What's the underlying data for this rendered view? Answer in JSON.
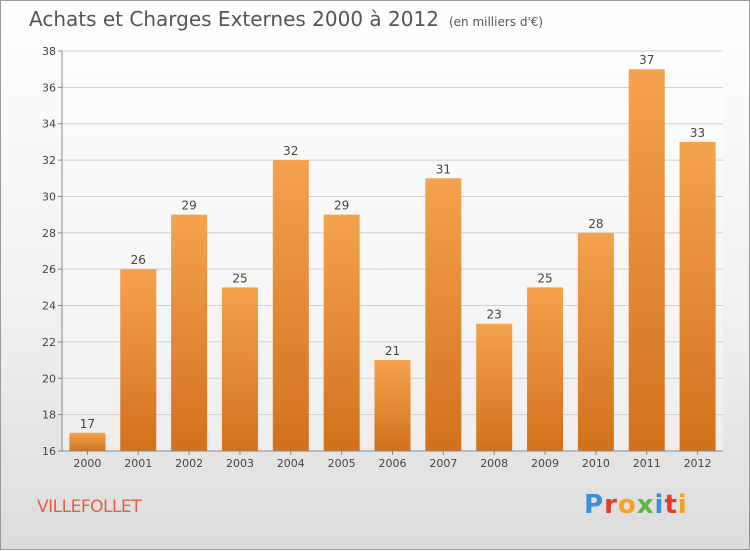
{
  "header": {
    "title": "Achats et Charges Externes 2000 à 2012",
    "subtitle": "(en milliers d'€)"
  },
  "footer": {
    "city": "VILLEFOLLET",
    "logo_letters": [
      "P",
      "r",
      "o",
      "x",
      "i",
      "t",
      "i"
    ],
    "logo_colors": [
      "#3a8fd6",
      "#e53b2c",
      "#f2a51a",
      "#5bb547",
      "#3a8fd6",
      "#e53b2c",
      "#f2a51a"
    ]
  },
  "chart_data": {
    "type": "bar",
    "categories": [
      "2000",
      "2001",
      "2002",
      "2003",
      "2004",
      "2005",
      "2006",
      "2007",
      "2008",
      "2009",
      "2010",
      "2011",
      "2012"
    ],
    "values": [
      17,
      26,
      29,
      25,
      32,
      29,
      21,
      31,
      23,
      25,
      28,
      37,
      33
    ],
    "ylim": [
      16,
      38
    ],
    "yticks": [
      16,
      18,
      20,
      22,
      24,
      26,
      28,
      30,
      32,
      34,
      36,
      38
    ],
    "grid": true,
    "bar_color_top": "#f5a24e",
    "bar_color_bottom": "#d2711c"
  }
}
